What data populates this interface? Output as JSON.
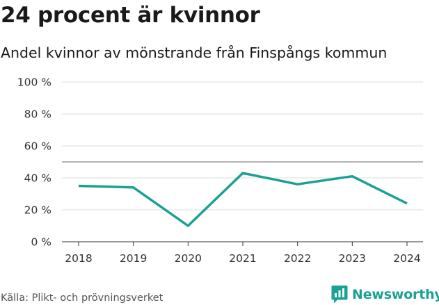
{
  "title": "24 procent är kvinnor",
  "subtitle": "Andel kvinnor av mönstrande från Finspångs kommun",
  "source": "Källa: Plikt- och prövningsverket",
  "brand": {
    "name": "Newsworthy",
    "icon": "newsworthy-logo-icon",
    "color": "#1aa193"
  },
  "colors": {
    "line": "#1aa193",
    "grid": "#dddddd",
    "axis": "#333333",
    "reference": "#888888"
  },
  "chart_data": {
    "type": "line",
    "title": "24 procent är kvinnor",
    "subtitle": "Andel kvinnor av mönstrande från Finspångs kommun",
    "xlabel": "",
    "ylabel": "",
    "categories": [
      "2018",
      "2019",
      "2020",
      "2021",
      "2022",
      "2023",
      "2024"
    ],
    "series": [
      {
        "name": "Andel kvinnor",
        "values": [
          35,
          34,
          10,
          43,
          36,
          41,
          24
        ]
      }
    ],
    "ylim": [
      0,
      100
    ],
    "yticks": [
      0,
      20,
      40,
      60,
      80,
      100
    ],
    "ytick_labels": [
      "0 %",
      "20 %",
      "40 %",
      "60 %",
      "80 %",
      "100 %"
    ],
    "reference_line": 50,
    "grid": true,
    "legend": "none"
  }
}
